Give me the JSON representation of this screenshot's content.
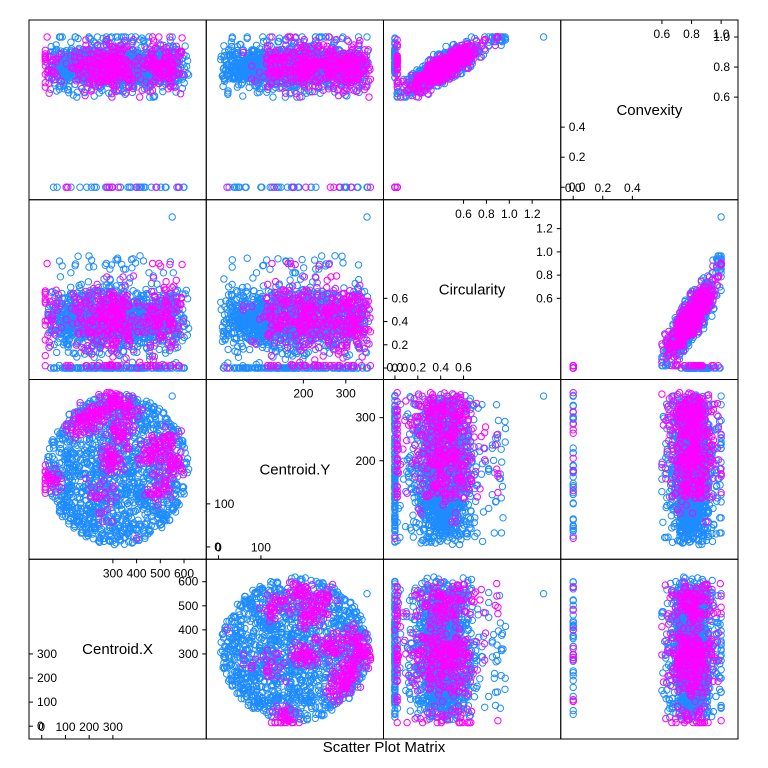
{
  "chart_data": {
    "type": "scatter",
    "title": "",
    "xlabel": "Scatter Plot Matrix",
    "ylabel": "",
    "grid": false,
    "legend": "none",
    "colors": {
      "group_a": "#1e8cff",
      "group_b": "#ff00ff",
      "frame": "#000000"
    },
    "variables": [
      {
        "name": "Centroid.X",
        "range": [
          -20,
          660
        ],
        "diag_ticks_a": [
          0,
          100,
          200,
          300
        ],
        "diag_ticks_b": [
          300,
          400,
          500,
          600
        ]
      },
      {
        "name": "Centroid.Y",
        "range": [
          -10,
          370
        ],
        "diag_ticks_a": [
          0,
          100
        ],
        "diag_ticks_b": [
          200,
          300
        ]
      },
      {
        "name": "Circularity",
        "range": [
          -0.03,
          1.38
        ],
        "diag_ticks_a": [
          0.0,
          0.2,
          0.4,
          0.6
        ],
        "diag_ticks_b": [
          0.6,
          0.8,
          1.0,
          1.2
        ]
      },
      {
        "name": "Convexity",
        "range": [
          -0.03,
          1.06
        ],
        "diag_ticks_a": [
          0.0,
          0.2,
          0.4
        ],
        "diag_ticks_b": [
          0.6,
          0.8,
          1.0
        ]
      }
    ],
    "tick_labels": {
      "Centroid.X": {
        "a": [
          "0",
          "100",
          "200",
          "300"
        ],
        "b": [
          "300",
          "400",
          "500",
          "600"
        ]
      },
      "Centroid.Y": {
        "a": [
          "0",
          "100"
        ],
        "b": [
          "200",
          "300"
        ]
      },
      "Circularity": {
        "a": [
          "0.0",
          "0.2",
          "0.4",
          "0.6"
        ],
        "b": [
          "0.6",
          "0.8",
          "1.0",
          "1.2"
        ]
      },
      "Convexity": {
        "a": [
          "0.0",
          "0.2",
          "0.4"
        ],
        "b": [
          "0.6",
          "0.8",
          "1.0"
        ]
      }
    },
    "series": [
      {
        "group": "group_b",
        "note_clusters_centroid_xy": [
          [
            300,
            330
          ],
          [
            360,
            310
          ],
          [
            230,
            300
          ],
          [
            160,
            290
          ],
          [
            520,
            240
          ],
          [
            560,
            190
          ],
          [
            470,
            210
          ],
          [
            500,
            130
          ],
          [
            290,
            200
          ],
          [
            250,
            120
          ],
          [
            40,
            160
          ],
          [
            330,
            260
          ]
        ],
        "circularity_mean": 0.38,
        "convexity_mean": 0.9
      },
      {
        "group": "group_a",
        "centroid_x_center": 320,
        "centroid_y_center": 180,
        "disc_radius": 320,
        "circularity_mean": 0.42,
        "convexity_mean": 0.9
      }
    ],
    "outliers": [
      {
        "circularity": 1.3,
        "convexity": 1.0
      },
      {
        "circularity": 0.0,
        "convexity": 0.0
      }
    ]
  }
}
